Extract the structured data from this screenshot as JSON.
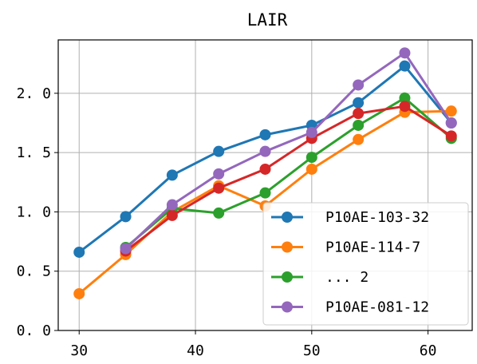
{
  "chart_data": {
    "type": "line",
    "title": "LAIR",
    "xlabel": "",
    "ylabel": "",
    "xlim": [
      28.2,
      63.8
    ],
    "ylim": [
      0.0,
      2.45
    ],
    "xticks": [
      30,
      40,
      50,
      60
    ],
    "yticks": [
      0.0,
      0.5,
      1.0,
      1.5,
      2.0
    ],
    "ytick_labels": [
      "0. 0",
      "0. 5",
      "1. 0",
      "1. 5",
      "2. 0"
    ],
    "grid": true,
    "legend_position": "lower-right",
    "series": [
      {
        "name": "P10AE-103-32",
        "color": "#1f77b4",
        "legend": true,
        "x": [
          30,
          34,
          38,
          42,
          46,
          50,
          54,
          58,
          62
        ],
        "y": [
          0.66,
          0.96,
          1.31,
          1.51,
          1.65,
          1.73,
          1.92,
          2.23,
          1.75
        ]
      },
      {
        "name": "P10AE-114-7",
        "color": "#ff7f0e",
        "legend": true,
        "x": [
          30,
          34,
          38,
          42,
          46,
          50,
          54,
          58,
          62
        ],
        "y": [
          0.31,
          0.64,
          1.0,
          1.22,
          1.05,
          1.36,
          1.61,
          1.84,
          1.85
        ]
      },
      {
        "name": "... 2",
        "color": "#2ca02c",
        "legend": true,
        "x": [
          34,
          38,
          42,
          46,
          50,
          54,
          58,
          62
        ],
        "y": [
          0.7,
          1.03,
          0.99,
          1.16,
          1.46,
          1.73,
          1.96,
          1.62
        ]
      },
      {
        "name": "",
        "color": "#d62728",
        "legend": false,
        "x": [
          34,
          38,
          42,
          46,
          50,
          54,
          58,
          62
        ],
        "y": [
          0.67,
          0.97,
          1.2,
          1.36,
          1.62,
          1.83,
          1.89,
          1.64
        ]
      },
      {
        "name": "P10AE-081-12",
        "color": "#9467bd",
        "legend": true,
        "x": [
          34,
          38,
          42,
          46,
          50,
          54,
          58,
          62
        ],
        "y": [
          0.69,
          1.06,
          1.32,
          1.51,
          1.67,
          2.07,
          2.34,
          1.75
        ]
      }
    ]
  }
}
